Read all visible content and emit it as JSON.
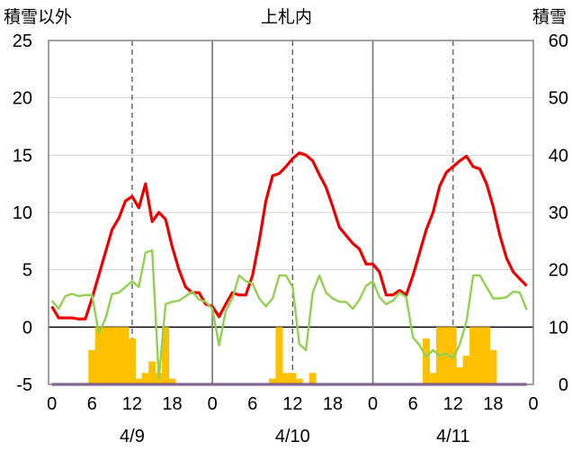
{
  "header": {
    "left_label": "積雪以外",
    "center_label": "上札内",
    "right_label": "積雪"
  },
  "chart_data": {
    "type": "line",
    "title": "上札内",
    "x": [
      0,
      1,
      2,
      3,
      4,
      5,
      6,
      7,
      8,
      9,
      10,
      11,
      12,
      13,
      14,
      15,
      16,
      17,
      18,
      19,
      20,
      21,
      22,
      23,
      24,
      25,
      26,
      27,
      28,
      29,
      30,
      31,
      32,
      33,
      34,
      35,
      36,
      37,
      38,
      39,
      40,
      41,
      42,
      43,
      44,
      45,
      46,
      47,
      48,
      49,
      50,
      51,
      52,
      53,
      54,
      55,
      56,
      57,
      58,
      59,
      60,
      61,
      62,
      63,
      64,
      65,
      66,
      67,
      68,
      69,
      70,
      71
    ],
    "x_ticks": [
      {
        "x": 0,
        "label": "0"
      },
      {
        "x": 6,
        "label": "6"
      },
      {
        "x": 12,
        "label": "12"
      },
      {
        "x": 18,
        "label": "18"
      },
      {
        "x": 24,
        "label": "0"
      },
      {
        "x": 30,
        "label": "6"
      },
      {
        "x": 36,
        "label": "12"
      },
      {
        "x": 42,
        "label": "18"
      },
      {
        "x": 48,
        "label": "0"
      },
      {
        "x": 54,
        "label": "6"
      },
      {
        "x": 60,
        "label": "12"
      },
      {
        "x": 66,
        "label": "18"
      },
      {
        "x": 72,
        "label": "0"
      }
    ],
    "day_labels": [
      {
        "x": 12,
        "label": "4/9"
      },
      {
        "x": 36,
        "label": "4/10"
      },
      {
        "x": 60,
        "label": "4/11"
      }
    ],
    "xlim": [
      -0.5,
      72
    ],
    "ylabel": "積雪以外",
    "ylim": [
      -5,
      25
    ],
    "yticks": [
      -5,
      0,
      5,
      10,
      15,
      20,
      25
    ],
    "y2label": "積雪",
    "y2lim": [
      0,
      60
    ],
    "y2ticks": [
      0,
      10,
      20,
      30,
      40,
      50,
      60
    ],
    "grid": "vertical dashed at 12h, solid at day boundaries, horizontal solid at each y tick",
    "series": [
      {
        "color": "#ffc000",
        "type": "bar",
        "values": [
          0,
          0,
          0,
          0,
          0,
          0,
          6,
          10,
          10,
          10,
          10,
          10,
          8,
          1,
          2,
          4,
          2,
          10,
          1,
          0,
          0,
          0,
          0,
          0,
          0,
          0,
          0,
          0,
          0,
          0,
          0,
          0,
          0,
          1,
          10,
          2,
          2,
          1,
          0,
          2,
          0,
          0,
          0,
          0,
          0,
          0,
          0,
          0,
          0,
          0,
          0,
          0,
          0,
          0,
          0,
          0,
          8,
          2,
          10,
          10,
          10,
          3,
          5,
          10,
          10,
          10,
          6,
          0,
          0,
          0,
          0,
          0
        ]
      },
      {
        "color": "#ee0000",
        "type": "line",
        "values": [
          1.8,
          0.8,
          0.8,
          0.8,
          0.7,
          0.7,
          2.5,
          4.5,
          6.5,
          8.5,
          9.5,
          11.0,
          11.4,
          10.4,
          12.5,
          9.2,
          10.0,
          9.4,
          7.0,
          5.0,
          3.5,
          3.0,
          3.0,
          2.0,
          1.8,
          0.9,
          2.0,
          3.0,
          2.8,
          2.8,
          4.5,
          7.5,
          11.0,
          13.2,
          13.4,
          14.0,
          14.7,
          15.2,
          15.0,
          14.5,
          13.3,
          12.2,
          10.5,
          8.7,
          8.0,
          7.3,
          6.8,
          5.5,
          5.5,
          4.8,
          2.8,
          2.8,
          3.2,
          2.8,
          4.5,
          6.5,
          8.5,
          10.0,
          12.3,
          13.5,
          14.0,
          14.5,
          14.9,
          14.0,
          13.8,
          12.5,
          10.5,
          8.0,
          6.0,
          4.8,
          4.2,
          3.6
        ]
      },
      {
        "color": "#92d050",
        "type": "line",
        "values": [
          2.3,
          1.6,
          2.7,
          2.9,
          2.7,
          2.8,
          2.8,
          -0.5,
          0.7,
          2.9,
          3.0,
          3.5,
          4.0,
          3.5,
          6.5,
          6.7,
          -4.5,
          2.0,
          2.2,
          2.3,
          2.7,
          3.1,
          2.4,
          2.2,
          1.6,
          -1.6,
          1.4,
          2.5,
          4.5,
          4.0,
          3.8,
          2.5,
          1.8,
          2.5,
          4.5,
          4.5,
          3.5,
          -1.5,
          -2.0,
          3.0,
          4.5,
          3.0,
          2.5,
          2.2,
          2.2,
          1.6,
          2.4,
          3.6,
          4.0,
          2.6,
          2.0,
          2.3,
          3.0,
          2.6,
          -0.9,
          -1.6,
          -2.6,
          -2.0,
          -2.5,
          -2.3,
          -2.7,
          -1.5,
          0.5,
          4.5,
          4.5,
          3.5,
          2.5,
          2.5,
          2.6,
          3.1,
          3.0,
          1.5
        ]
      },
      {
        "color": "#7030a0",
        "type": "line",
        "values": [
          -5,
          -5,
          -5,
          -5,
          -5,
          -5,
          -5,
          -5,
          -5,
          -5,
          -5,
          -5,
          -5,
          -5,
          -5,
          -5,
          -5,
          -5,
          -5,
          -5,
          -5,
          -5,
          -5,
          -5,
          -5,
          -5,
          -5,
          -5,
          -5,
          -5,
          -5,
          -5,
          -5,
          -5,
          -5,
          -5,
          -5,
          -5,
          -5,
          -5,
          -5,
          -5,
          -5,
          -5,
          -5,
          -5,
          -5,
          -5,
          -5,
          -5,
          -5,
          -5,
          -5,
          -5,
          -5,
          -5,
          -5,
          -5,
          -5,
          -5,
          -5,
          -5,
          -5,
          -5,
          -5,
          -5,
          -5,
          -5,
          -5,
          -5,
          -5,
          -5
        ]
      }
    ]
  }
}
